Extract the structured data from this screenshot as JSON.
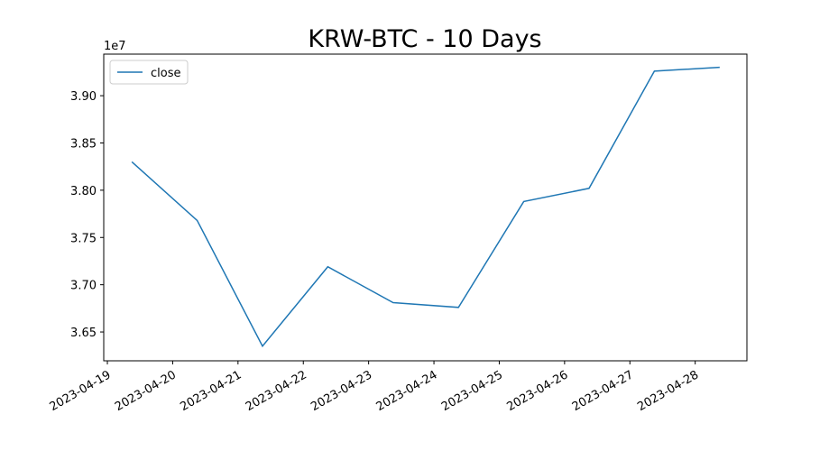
{
  "chart_data": {
    "type": "line",
    "title": "KRW-BTC - 10 Days",
    "y_offset_label": "1e7",
    "x": [
      "2023-04-19T09:00",
      "2023-04-20T09:00",
      "2023-04-21T09:00",
      "2023-04-22T09:00",
      "2023-04-23T09:00",
      "2023-04-24T09:00",
      "2023-04-25T09:00",
      "2023-04-26T09:00",
      "2023-04-27T09:00",
      "2023-04-28T09:00"
    ],
    "series": [
      {
        "name": "close",
        "color": "#1f77b4",
        "values": [
          3.83,
          3.768,
          3.635,
          3.719,
          3.681,
          3.676,
          3.788,
          3.802,
          3.926,
          3.93
        ]
      }
    ],
    "xlim": [
      "2023-04-18T22:40",
      "2023-04-28T19:00"
    ],
    "xticks": [
      "2023-04-19",
      "2023-04-20",
      "2023-04-21",
      "2023-04-22",
      "2023-04-23",
      "2023-04-24",
      "2023-04-25",
      "2023-04-26",
      "2023-04-27",
      "2023-04-28"
    ],
    "ylim": [
      3.6195,
      3.944
    ],
    "yticks": [
      {
        "value": 3.65,
        "label": "3.65"
      },
      {
        "value": 3.7,
        "label": "3.70"
      },
      {
        "value": 3.75,
        "label": "3.75"
      },
      {
        "value": 3.8,
        "label": "3.80"
      },
      {
        "value": 3.85,
        "label": "3.85"
      },
      {
        "value": 3.9,
        "label": "3.90"
      }
    ],
    "legend": "upper left",
    "grid": false
  }
}
